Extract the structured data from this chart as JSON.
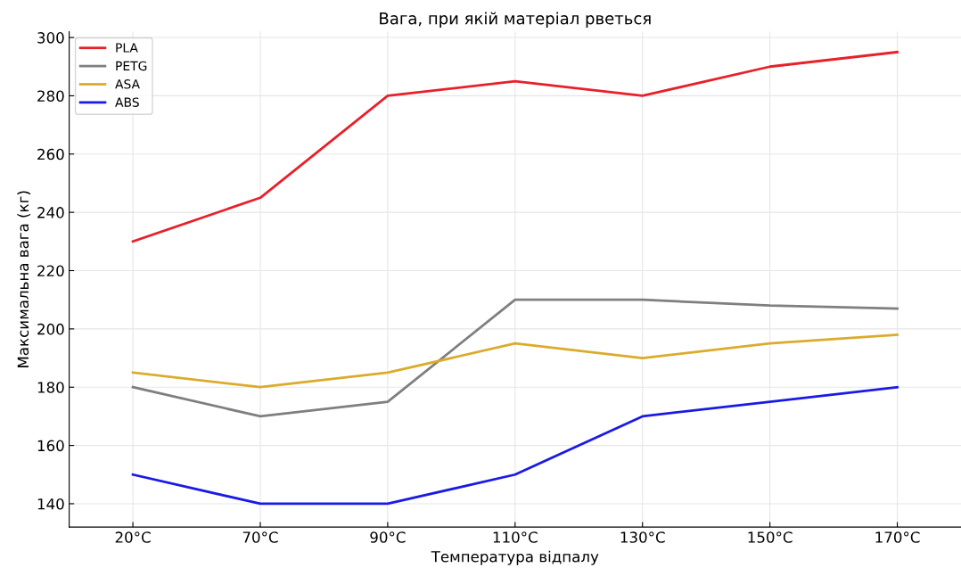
{
  "chart_data": {
    "type": "line",
    "title": "Вага, при якій матеріал рветься",
    "xlabel": "Температура відпалу",
    "ylabel": "Максимальна вага (кг)",
    "categories": [
      "20°C",
      "70°C",
      "90°C",
      "110°C",
      "130°C",
      "150°C",
      "170°C"
    ],
    "series": [
      {
        "name": "PLA",
        "color": "#e8202a",
        "values": [
          230,
          245,
          280,
          285,
          280,
          290,
          295
        ]
      },
      {
        "name": "PETG",
        "color": "#7f7f7f",
        "values": [
          180,
          170,
          175,
          210,
          210,
          208,
          207
        ]
      },
      {
        "name": "ASA",
        "color": "#dbab2a",
        "values": [
          185,
          180,
          185,
          195,
          190,
          195,
          198
        ]
      },
      {
        "name": "ABS",
        "color": "#1a1ae6",
        "values": [
          150,
          140,
          140,
          150,
          170,
          175,
          180
        ]
      }
    ],
    "ylim": [
      132,
      302
    ],
    "yticks": [
      140,
      160,
      180,
      200,
      220,
      240,
      260,
      280,
      300
    ],
    "grid": true,
    "legend": "top left",
    "line_style": "solid",
    "marker": "none"
  }
}
